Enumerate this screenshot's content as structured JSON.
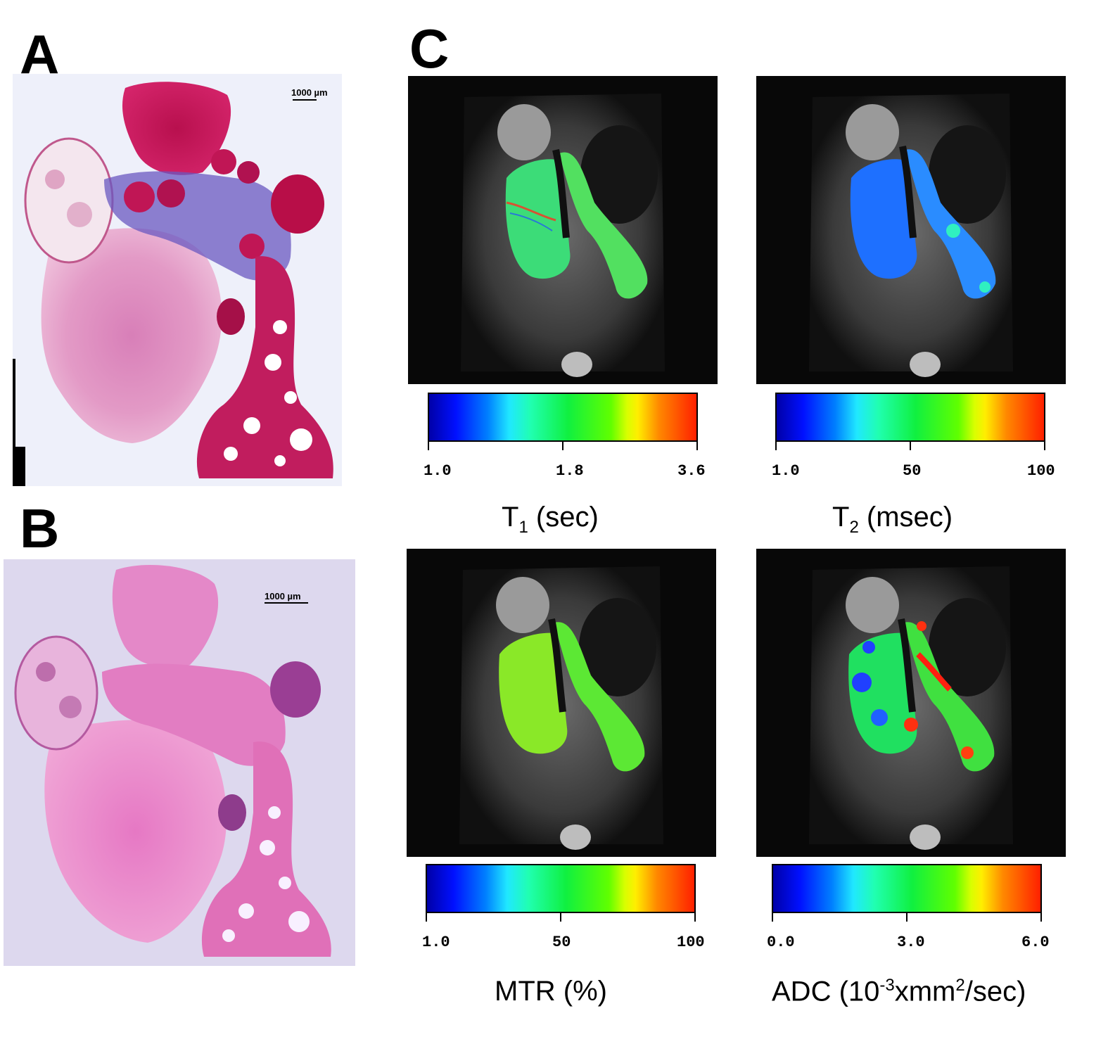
{
  "panels": {
    "a": {
      "letter": "A",
      "scale_text": "1000 µm"
    },
    "b": {
      "letter": "B",
      "scale_text": "1000 µm"
    },
    "c": {
      "letter": "C"
    }
  },
  "maps": [
    {
      "id": "t1",
      "label_main": "T",
      "label_sub": "1",
      "label_rest": " (sec)",
      "ticks": [
        "1.0",
        "1.8",
        "3.6"
      ]
    },
    {
      "id": "t2",
      "label_main": "T",
      "label_sub": "2",
      "label_rest": " (msec)",
      "ticks": [
        "1.0",
        "50",
        "100"
      ]
    },
    {
      "id": "mtr",
      "label_main": "MTR (%)",
      "ticks": [
        "1.0",
        "50",
        "100"
      ]
    },
    {
      "id": "adc",
      "label_main": "ADC (10",
      "label_sup1": "-3",
      "label_mid": "xmm",
      "label_sup2": "2",
      "label_rest": "/sec)",
      "ticks": [
        "0.0",
        "3.0",
        "6.0"
      ]
    }
  ]
}
